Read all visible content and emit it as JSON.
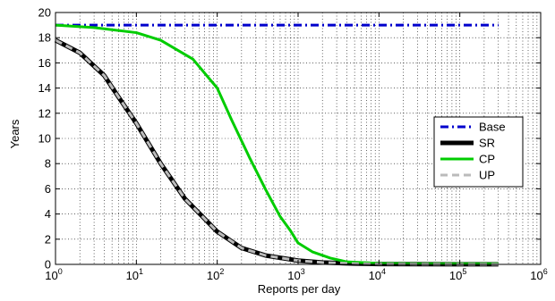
{
  "chart_data": {
    "type": "line",
    "title": "",
    "xlabel": "Reports per day",
    "ylabel": "Years",
    "xscale": "log",
    "xlim": [
      1,
      1000000
    ],
    "ylim": [
      0,
      20
    ],
    "grid": true,
    "legend_position": "right",
    "x_ticks": [
      {
        "value": 1,
        "base": "10",
        "exp": "0"
      },
      {
        "value": 10,
        "base": "10",
        "exp": "1"
      },
      {
        "value": 100,
        "base": "10",
        "exp": "2"
      },
      {
        "value": 1000,
        "base": "10",
        "exp": "3"
      },
      {
        "value": 10000,
        "base": "10",
        "exp": "4"
      },
      {
        "value": 100000,
        "base": "10",
        "exp": "5"
      },
      {
        "value": 1000000,
        "base": "10",
        "exp": "6"
      }
    ],
    "y_ticks": [
      0,
      2,
      4,
      6,
      8,
      10,
      12,
      14,
      16,
      18,
      20
    ],
    "series": [
      {
        "name": "Base",
        "color": "#0000cc",
        "dash": "dashdot",
        "width": 3,
        "points": [
          [
            1,
            19
          ],
          [
            10,
            19
          ],
          [
            100,
            19
          ],
          [
            1000,
            19
          ],
          [
            10000,
            19
          ],
          [
            100000,
            19
          ],
          [
            300000,
            19
          ]
        ]
      },
      {
        "name": "SR",
        "color": "#000000",
        "dash": "solid",
        "width": 5,
        "points": [
          [
            1,
            17.8
          ],
          [
            2,
            16.8
          ],
          [
            4,
            15
          ],
          [
            6,
            13.3
          ],
          [
            10,
            11.2
          ],
          [
            20,
            8
          ],
          [
            40,
            5.2
          ],
          [
            100,
            2.6
          ],
          [
            200,
            1.3
          ],
          [
            400,
            0.7
          ],
          [
            1000,
            0.3
          ],
          [
            2000,
            0.15
          ],
          [
            5000,
            0.06
          ],
          [
            10000,
            0.03
          ],
          [
            100000,
            0.01
          ],
          [
            300000,
            0.01
          ]
        ]
      },
      {
        "name": "CP",
        "color": "#00cc00",
        "dash": "solid",
        "width": 3,
        "points": [
          [
            1,
            19
          ],
          [
            3,
            18.8
          ],
          [
            10,
            18.4
          ],
          [
            20,
            17.8
          ],
          [
            50,
            16.3
          ],
          [
            100,
            14
          ],
          [
            150,
            11.5
          ],
          [
            250,
            8.5
          ],
          [
            400,
            5.9
          ],
          [
            600,
            3.8
          ],
          [
            800,
            2.7
          ],
          [
            1000,
            1.7
          ],
          [
            1500,
            1
          ],
          [
            2500,
            0.5
          ],
          [
            4000,
            0.2
          ],
          [
            10000,
            0.08
          ],
          [
            30000,
            0.05
          ],
          [
            100000,
            0.05
          ],
          [
            300000,
            0.05
          ]
        ]
      },
      {
        "name": "UP",
        "color": "#bbbbbb",
        "dash": "dashed",
        "width": 3,
        "points": [
          [
            1,
            17.8
          ],
          [
            2,
            16.8
          ],
          [
            4,
            15
          ],
          [
            6,
            13.3
          ],
          [
            10,
            11.2
          ],
          [
            20,
            8
          ],
          [
            40,
            5.2
          ],
          [
            100,
            2.6
          ],
          [
            200,
            1.3
          ],
          [
            400,
            0.7
          ],
          [
            1000,
            0.3
          ],
          [
            2000,
            0.15
          ],
          [
            5000,
            0.06
          ],
          [
            10000,
            0.03
          ],
          [
            100000,
            0.01
          ],
          [
            300000,
            0.01
          ]
        ]
      }
    ]
  }
}
